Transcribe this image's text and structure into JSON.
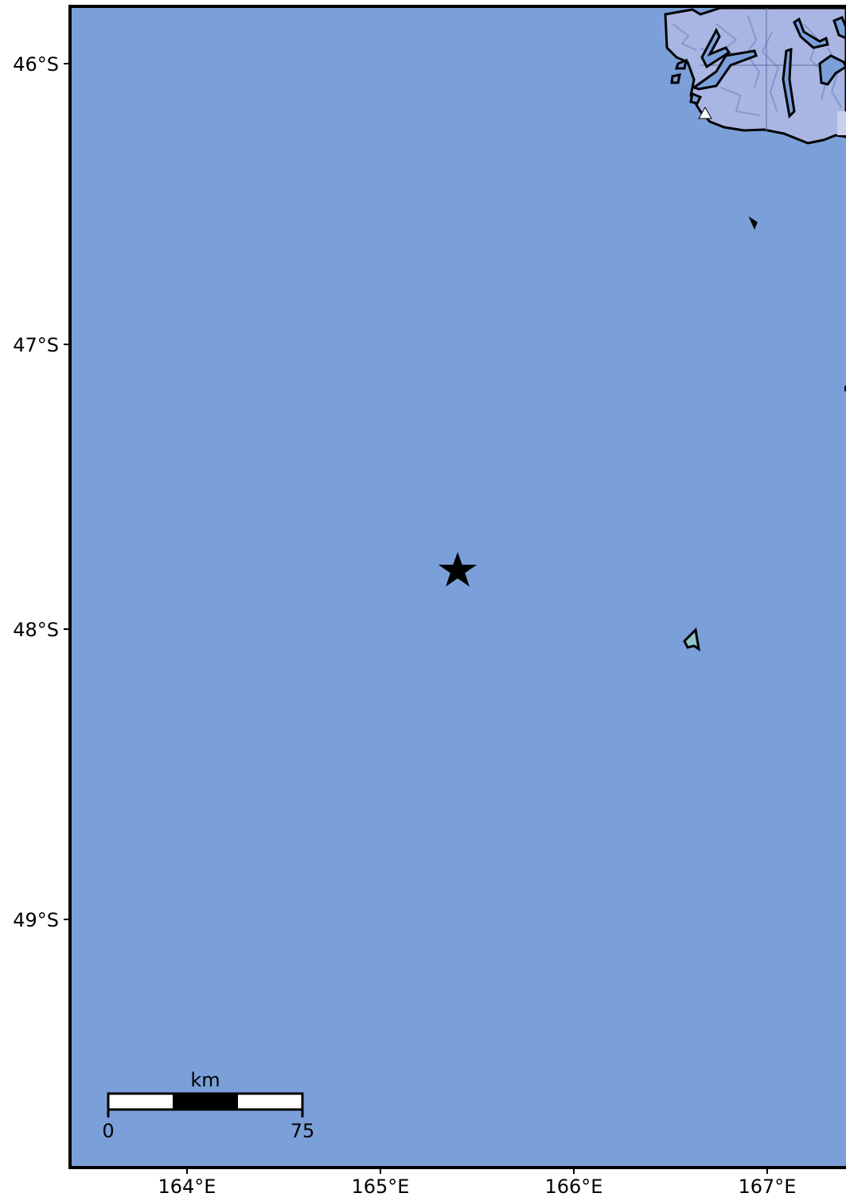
{
  "map": {
    "colors": {
      "ocean": "#7ba0d9",
      "land": "#a9b6e4",
      "land_shade": "#7e8fc8",
      "frame": "#000000",
      "coast": "#000000",
      "marker": "#000000",
      "station": "#ffffff"
    },
    "lat_labels": [
      "46°S",
      "47°S",
      "48°S",
      "49°S"
    ],
    "lon_labels": [
      "164°E",
      "165°E",
      "166°E",
      "167°E"
    ],
    "scale_bar": {
      "unit": "km",
      "start_label": "0",
      "end_label": "75"
    },
    "epicenter": {
      "lat": -47.8,
      "lon": 165.4,
      "symbol": "star-icon"
    },
    "station": {
      "lat": -46.17,
      "lon": 166.7,
      "symbol": "triangle-icon"
    }
  }
}
